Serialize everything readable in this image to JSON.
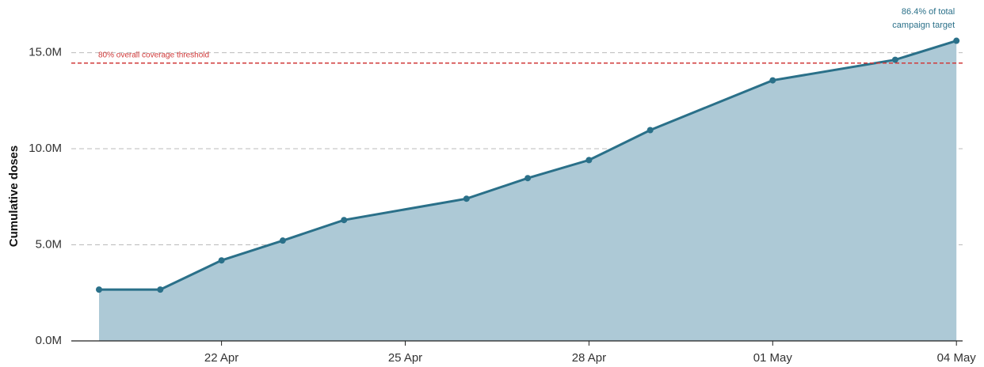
{
  "chart_data": {
    "type": "area",
    "y_label": "Cumulative doses",
    "x": [
      "20 Apr",
      "21 Apr",
      "22 Apr",
      "23 Apr",
      "24 Apr",
      "26 Apr",
      "27 Apr",
      "28 Apr",
      "29 Apr",
      "01 May",
      "03 May",
      "04 May"
    ],
    "series": [
      {
        "name": "Cumulative doses",
        "color": "#2a7089",
        "fill": "#adc9d6",
        "values": [
          2670000,
          2670000,
          4190000,
          5220000,
          6290000,
          7400000,
          8470000,
          9410000,
          10970000,
          13560000,
          14630000,
          15620000
        ]
      }
    ],
    "xticks": [
      "22 Apr",
      "25 Apr",
      "28 Apr",
      "01 May",
      "04 May"
    ],
    "ylim": [
      0,
      16300000
    ],
    "yticks": [
      {
        "value": 0,
        "label": "0.0M"
      },
      {
        "value": 5000000,
        "label": "5.0M"
      },
      {
        "value": 10000000,
        "label": "10.0M"
      },
      {
        "value": 15000000,
        "label": "15.0M"
      }
    ],
    "grid": true,
    "threshold": {
      "value": 14460000,
      "label": "80% overall coverage threshold",
      "color": "#d03a3a"
    },
    "annotation_lines": [
      "86.4% of total",
      "campaign target"
    ]
  }
}
